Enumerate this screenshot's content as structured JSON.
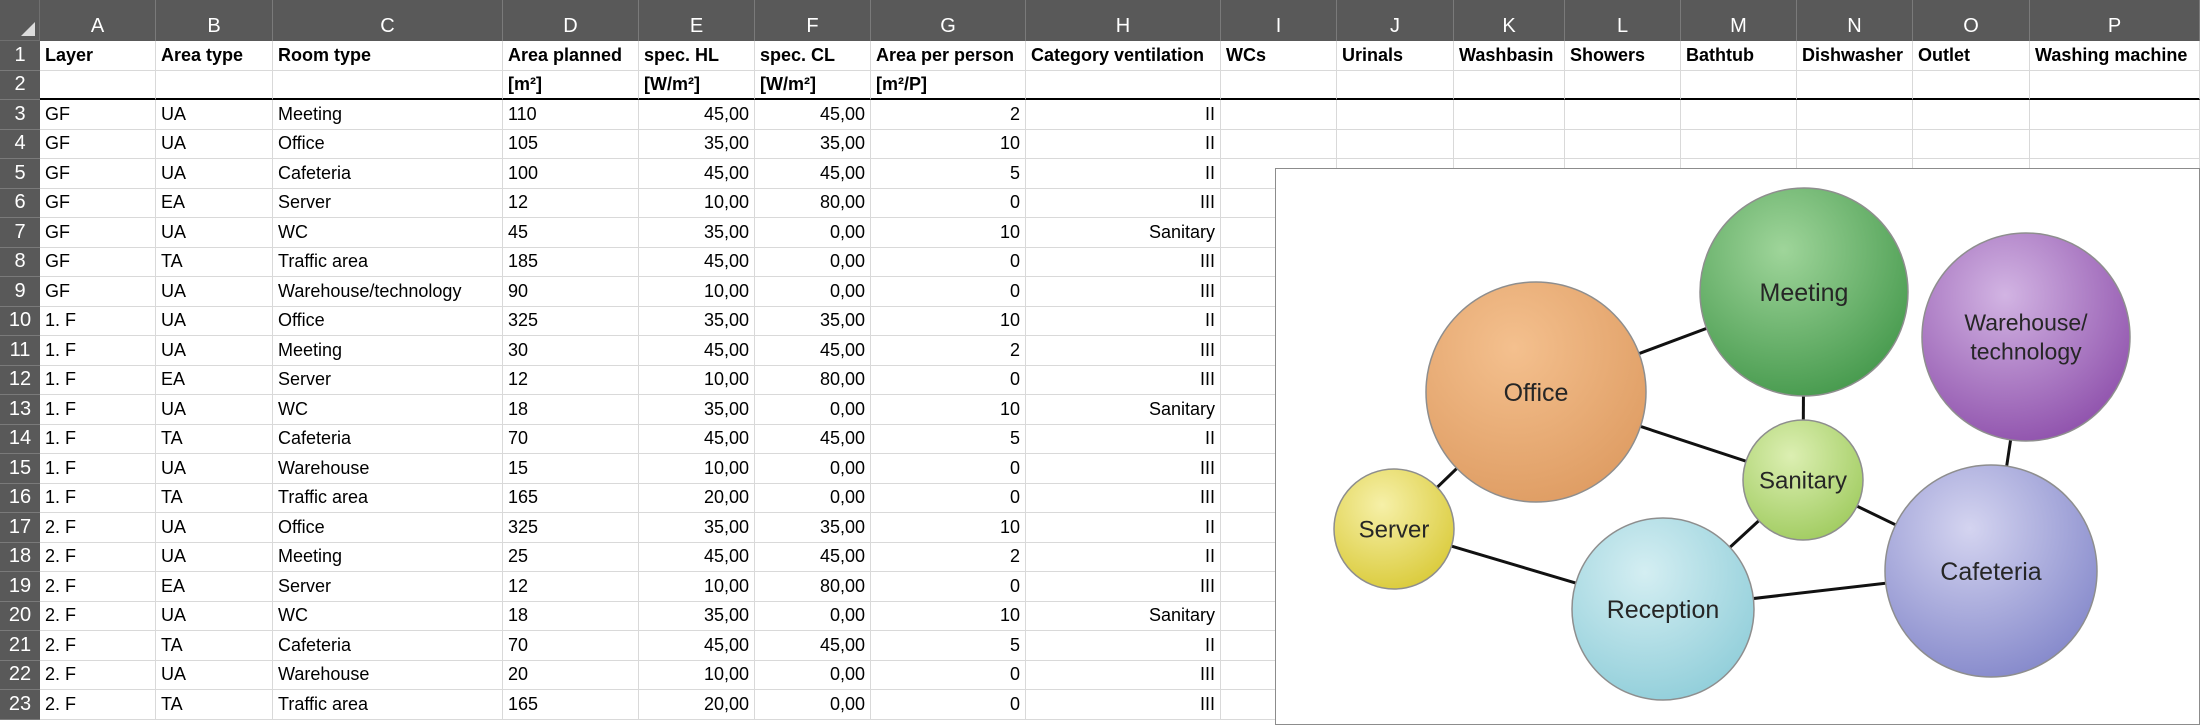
{
  "columns": [
    "A",
    "B",
    "C",
    "D",
    "E",
    "F",
    "G",
    "H",
    "I",
    "J",
    "K",
    "L",
    "M",
    "N",
    "O",
    "P"
  ],
  "header1": [
    "Layer",
    "Area type",
    "Room type",
    "Area planned",
    "spec. HL",
    "spec. CL",
    "Area per person",
    "Category ventilation",
    "WCs",
    "Urinals",
    "Washbasin",
    "Showers",
    "Bathtub",
    "Dishwasher",
    "Outlet",
    "Washing machine"
  ],
  "header2": [
    "",
    "",
    "",
    "[m²]",
    "[W/m²]",
    "[W/m²]",
    "[m²/P]",
    "",
    "",
    "",
    "",
    "",
    "",
    "",
    "",
    ""
  ],
  "rows": [
    [
      "GF",
      "UA",
      "Meeting",
      "110",
      "45,00",
      "45,00",
      "2",
      "II"
    ],
    [
      "GF",
      "UA",
      "Office",
      "105",
      "35,00",
      "35,00",
      "10",
      "II"
    ],
    [
      "GF",
      "UA",
      "Cafeteria",
      "100",
      "45,00",
      "45,00",
      "5",
      "II"
    ],
    [
      "GF",
      "EA",
      "Server",
      "12",
      "10,00",
      "80,00",
      "0",
      "III"
    ],
    [
      "GF",
      "UA",
      "WC",
      "45",
      "35,00",
      "0,00",
      "10",
      "Sanitary"
    ],
    [
      "GF",
      "TA",
      "Traffic area",
      "185",
      "45,00",
      "0,00",
      "0",
      "III"
    ],
    [
      "GF",
      "UA",
      "Warehouse/technology",
      "90",
      "10,00",
      "0,00",
      "0",
      "III"
    ],
    [
      "1. F",
      "UA",
      "Office",
      "325",
      "35,00",
      "35,00",
      "10",
      "II"
    ],
    [
      "1. F",
      "UA",
      "Meeting",
      "30",
      "45,00",
      "45,00",
      "2",
      "III"
    ],
    [
      "1. F",
      "EA",
      "Server",
      "12",
      "10,00",
      "80,00",
      "0",
      "III"
    ],
    [
      "1. F",
      "UA",
      "WC",
      "18",
      "35,00",
      "0,00",
      "10",
      "Sanitary"
    ],
    [
      "1. F",
      "TA",
      "Cafeteria",
      "70",
      "45,00",
      "45,00",
      "5",
      "II"
    ],
    [
      "1. F",
      "UA",
      "Warehouse",
      "15",
      "10,00",
      "0,00",
      "0",
      "III"
    ],
    [
      "1. F",
      "TA",
      "Traffic area",
      "165",
      "20,00",
      "0,00",
      "0",
      "III"
    ],
    [
      "2. F",
      "UA",
      "Office",
      "325",
      "35,00",
      "35,00",
      "10",
      "II"
    ],
    [
      "2. F",
      "UA",
      "Meeting",
      "25",
      "45,00",
      "45,00",
      "2",
      "II"
    ],
    [
      "2. F",
      "EA",
      "Server",
      "12",
      "10,00",
      "80,00",
      "0",
      "III"
    ],
    [
      "2. F",
      "UA",
      "WC",
      "18",
      "35,00",
      "0,00",
      "10",
      "Sanitary"
    ],
    [
      "2. F",
      "TA",
      "Cafeteria",
      "70",
      "45,00",
      "45,00",
      "5",
      "II"
    ],
    [
      "2. F",
      "UA",
      "Warehouse",
      "20",
      "10,00",
      "0,00",
      "0",
      "III"
    ],
    [
      "2. F",
      "TA",
      "Traffic area",
      "165",
      "20,00",
      "0,00",
      "0",
      "III"
    ]
  ],
  "diagram": {
    "bubbles": [
      {
        "id": "meeting",
        "label": [
          "Meeting"
        ],
        "color_light": "#9fd59a",
        "color_dark": "#3f9547"
      },
      {
        "id": "office",
        "label": [
          "Office"
        ],
        "color_light": "#f4c08e",
        "color_dark": "#dd9a60"
      },
      {
        "id": "warehouse",
        "label": [
          "Warehouse/",
          "technology"
        ],
        "color_light": "#d2b4e3",
        "color_dark": "#8a4aa8"
      },
      {
        "id": "sanitary",
        "label": [
          "Sanitary"
        ],
        "color_light": "#dcefb2",
        "color_dark": "#9cc95a"
      },
      {
        "id": "server",
        "label": [
          "Server"
        ],
        "color_light": "#f6f0a8",
        "color_dark": "#d8c832"
      },
      {
        "id": "reception",
        "label": [
          "Reception"
        ],
        "color_light": "#d4eef2",
        "color_dark": "#8cccd8"
      },
      {
        "id": "cafeteria",
        "label": [
          "Cafeteria"
        ],
        "color_light": "#d4d4f0",
        "color_dark": "#7f83c8"
      }
    ],
    "links": [
      [
        "office",
        "meeting"
      ],
      [
        "office",
        "sanitary"
      ],
      [
        "office",
        "server"
      ],
      [
        "meeting",
        "sanitary"
      ],
      [
        "sanitary",
        "reception"
      ],
      [
        "sanitary",
        "cafeteria"
      ],
      [
        "server",
        "reception"
      ],
      [
        "reception",
        "cafeteria"
      ],
      [
        "warehouse",
        "cafeteria"
      ]
    ]
  }
}
